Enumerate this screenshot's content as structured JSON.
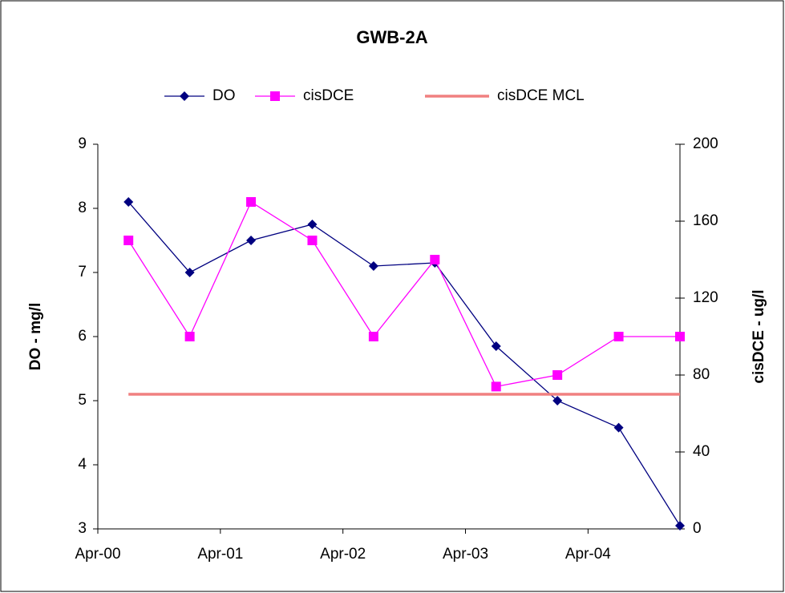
{
  "chart_data": {
    "type": "line",
    "title": "GWB-2A",
    "y_label": "DO - mg/l",
    "y2_label": "cisDCE - ug/l",
    "x": [
      "2000-07",
      "2001-01",
      "2001-07",
      "2002-01",
      "2002-07",
      "2003-01",
      "2003-07",
      "2004-01",
      "2004-07",
      "2005-01"
    ],
    "xlim": [
      "2000-04",
      "2005-01"
    ],
    "xticks": [
      {
        "value": "2000-04",
        "label": "Apr-00"
      },
      {
        "value": "2001-04",
        "label": "Apr-01"
      },
      {
        "value": "2002-04",
        "label": "Apr-02"
      },
      {
        "value": "2003-04",
        "label": "Apr-03"
      },
      {
        "value": "2004-04",
        "label": "Apr-04"
      }
    ],
    "ylim": [
      3,
      9
    ],
    "yticks": [
      3,
      4,
      5,
      6,
      7,
      8,
      9
    ],
    "y2lim": [
      0,
      200
    ],
    "y2ticks": [
      0,
      40,
      80,
      120,
      160,
      200
    ],
    "legend": "top",
    "series": [
      {
        "name": "DO",
        "color": "#000080",
        "marker": "diamond",
        "values": [
          8.1,
          7.0,
          7.5,
          7.75,
          7.1,
          7.15,
          5.85,
          5.0,
          4.58,
          3.05
        ]
      },
      {
        "name": "cisDCE",
        "color": "#ff00ff",
        "marker": "square",
        "axis": "y2",
        "values": [
          150,
          100,
          170,
          150,
          100,
          140,
          74,
          80,
          100,
          100
        ]
      },
      {
        "name": "cisDCE MCL",
        "color": "#f08080",
        "marker": "none",
        "axis": "y2",
        "values": [
          70,
          70,
          70,
          70,
          70,
          70,
          70,
          70,
          70,
          70
        ]
      }
    ]
  }
}
